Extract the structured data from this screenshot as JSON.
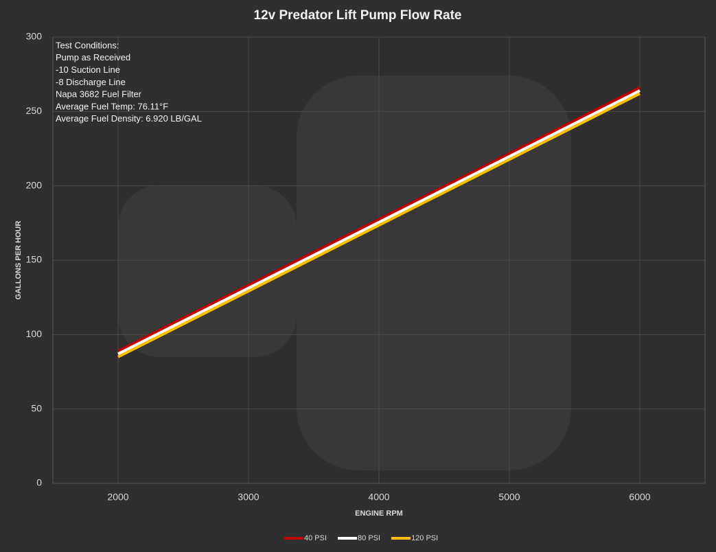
{
  "chart_data": {
    "type": "line",
    "title": "12v Predator  Lift Pump  Flow  Rate",
    "xlabel": "ENGINE RPM",
    "ylabel": "GALLONS PER HOUR",
    "annotations": [
      "Test Conditions:",
      "Pump as Received",
      "-10 Suction Line",
      "-8 Discharge Line",
      "Napa 3682  Fuel Filter",
      "Average Fuel Temp: 76.11°F",
      "Average Fuel Density: 6.920 LB/GAL"
    ],
    "x": [
      2000,
      6000
    ],
    "series": [
      {
        "name": "40 PSI",
        "color": "#c00000",
        "values": [
          89,
          266
        ]
      },
      {
        "name": "80 PSI",
        "color": "#ffffff",
        "values": [
          87,
          264
        ]
      },
      {
        "name": "120 PSI",
        "color": "#ffc000",
        "values": [
          85,
          262
        ]
      }
    ],
    "xlim": [
      1500,
      6500
    ],
    "xticks": [
      2000,
      3000,
      4000,
      5000,
      6000
    ],
    "ylim": [
      0,
      300
    ],
    "yticks": [
      0,
      50,
      100,
      150,
      200,
      250,
      300
    ],
    "grid": true,
    "legend": "bottom"
  }
}
